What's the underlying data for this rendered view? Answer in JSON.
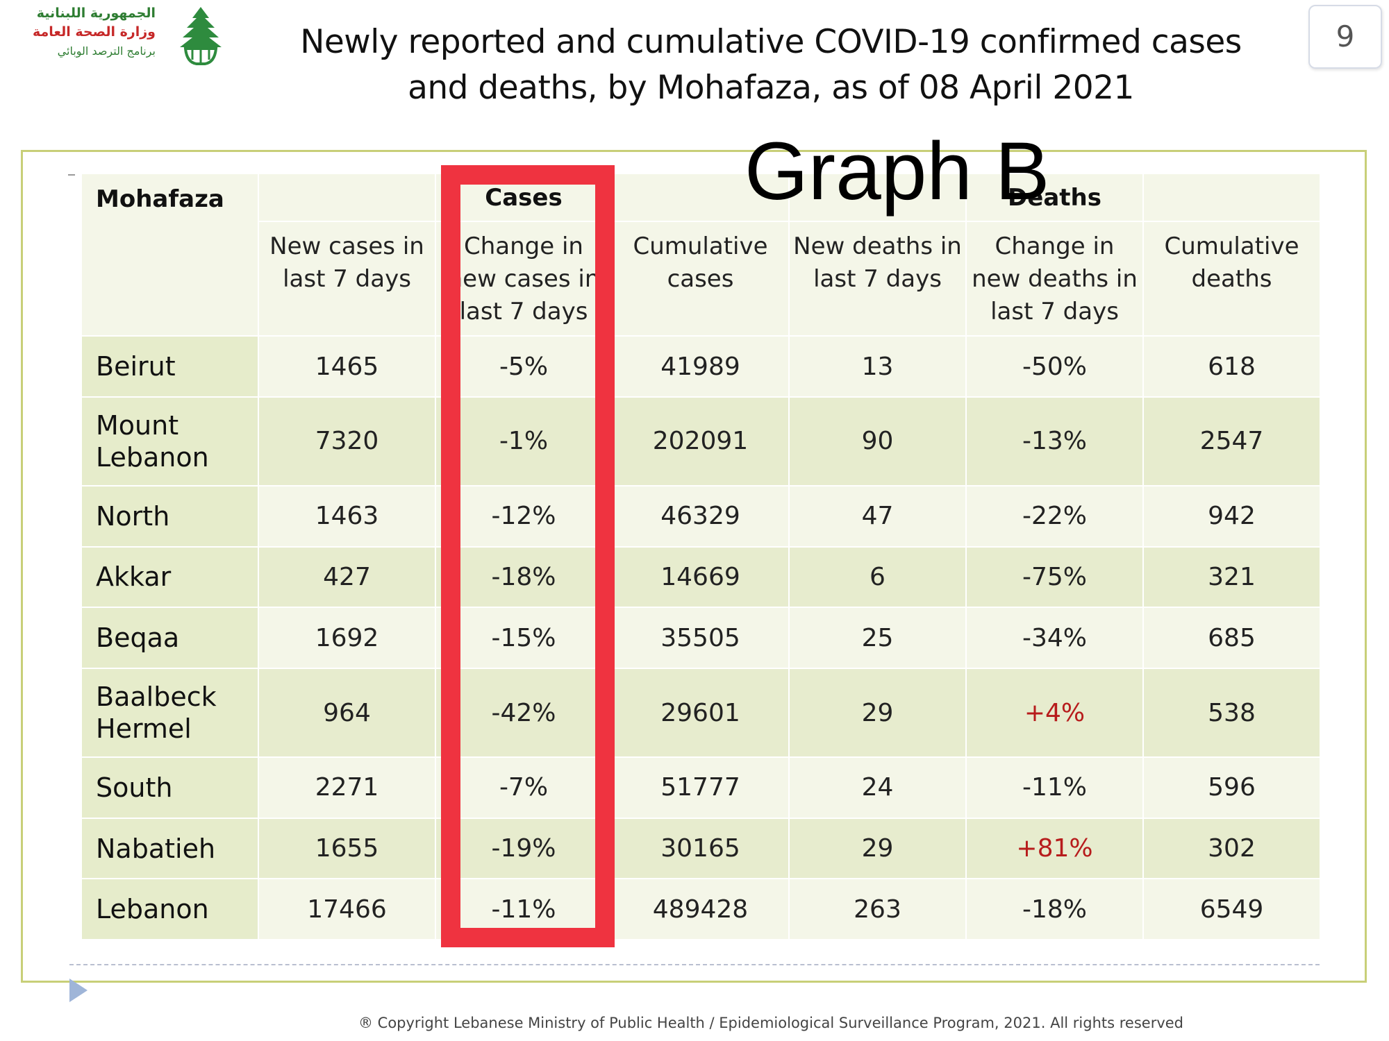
{
  "logo": {
    "line1": "الجمهورية اللبنانية",
    "line2": "وزارة الصحة العامة",
    "line3": "برنامج الترصد الوبائي",
    "icon": "cedar-hand-icon"
  },
  "title": "Newly reported and cumulative COVID-19 confirmed cases and deaths, by Mohafaza, as of 08 April 2021",
  "page_number": "9",
  "graph_label": "Graph B",
  "table": {
    "header": {
      "mohafaza": "Mohafaza",
      "cases_group": "Cases",
      "deaths_group": "Deaths",
      "columns": [
        "New cases in last 7 days",
        "Change in new cases in last 7 days",
        "Cumulative cases",
        "New deaths in last 7 days",
        "Change in new deaths in last 7 days",
        "Cumulative deaths"
      ]
    },
    "rows": [
      {
        "name": "Beirut",
        "new_cases": "1465",
        "change_cases": "-5%",
        "cum_cases": "41989",
        "new_deaths": "13",
        "change_deaths": "-50%",
        "cum_deaths": "618"
      },
      {
        "name": "Mount Lebanon",
        "new_cases": "7320",
        "change_cases": "-1%",
        "cum_cases": "202091",
        "new_deaths": "90",
        "change_deaths": "-13%",
        "cum_deaths": "2547"
      },
      {
        "name": "North",
        "new_cases": "1463",
        "change_cases": "-12%",
        "cum_cases": "46329",
        "new_deaths": "47",
        "change_deaths": "-22%",
        "cum_deaths": "942"
      },
      {
        "name": "Akkar",
        "new_cases": "427",
        "change_cases": "-18%",
        "cum_cases": "14669",
        "new_deaths": "6",
        "change_deaths": "-75%",
        "cum_deaths": "321"
      },
      {
        "name": "Beqaa",
        "new_cases": "1692",
        "change_cases": "-15%",
        "cum_cases": "35505",
        "new_deaths": "25",
        "change_deaths": "-34%",
        "cum_deaths": "685"
      },
      {
        "name": "Baalbeck Hermel",
        "new_cases": "964",
        "change_cases": "-42%",
        "cum_cases": "29601",
        "new_deaths": "29",
        "change_deaths": "+4%",
        "cum_deaths": "538"
      },
      {
        "name": "South",
        "new_cases": "2271",
        "change_cases": "-7%",
        "cum_cases": "51777",
        "new_deaths": "24",
        "change_deaths": "-11%",
        "cum_deaths": "596"
      },
      {
        "name": "Nabatieh",
        "new_cases": "1655",
        "change_cases": "-19%",
        "cum_cases": "30165",
        "new_deaths": "29",
        "change_deaths": "+81%",
        "cum_deaths": "302"
      },
      {
        "name": "Lebanon",
        "new_cases": "17466",
        "change_cases": "-11%",
        "cum_cases": "489428",
        "new_deaths": "263",
        "change_deaths": "-18%",
        "cum_deaths": "6549"
      }
    ]
  },
  "colors": {
    "highlight_box": "#ef3340",
    "positive_change": "#b71c1c",
    "frame": "#c8cf78"
  },
  "copyright": "® Copyright Lebanese Ministry of Public Health / Epidemiological Surveillance Program, 2021. All rights reserved"
}
